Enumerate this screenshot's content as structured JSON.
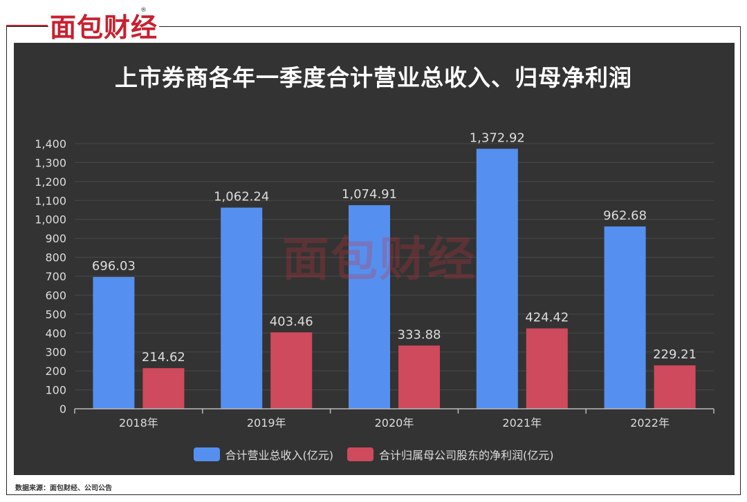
{
  "brand": {
    "logo_text": "面包财经",
    "reg_mark": "®",
    "watermark_text": "面包财经"
  },
  "source_note": "数据来源：面包财经、公司公告",
  "colors": {
    "revenue": "#5590f0",
    "profit": "#cf4a5c",
    "panel": "#333333",
    "accent": "#c8202f"
  },
  "chart_data": {
    "type": "bar",
    "title": "上市券商各年一季度合计营业总收入、归母净利润",
    "categories": [
      "2018年",
      "2019年",
      "2020年",
      "2021年",
      "2022年"
    ],
    "series": [
      {
        "name": "合计营业总收入(亿元)",
        "values": [
          696.03,
          1062.24,
          1074.91,
          1372.92,
          962.68
        ],
        "labels": [
          "696.03",
          "1,062.24",
          "1,074.91",
          "1,372.92",
          "962.68"
        ]
      },
      {
        "name": "合计归属母公司股东的净利润(亿元)",
        "values": [
          214.62,
          403.46,
          333.88,
          424.42,
          229.21
        ],
        "labels": [
          "214.62",
          "403.46",
          "333.88",
          "424.42",
          "229.21"
        ]
      }
    ],
    "ylim": [
      0,
      1400
    ],
    "yticks": [
      0,
      100,
      200,
      300,
      400,
      500,
      600,
      700,
      800,
      900,
      1000,
      1100,
      1200,
      1300,
      1400
    ],
    "ytick_labels": [
      "0",
      "100",
      "200",
      "300",
      "400",
      "500",
      "600",
      "700",
      "800",
      "900",
      "1,000",
      "1,100",
      "1,200",
      "1,300",
      "1,400"
    ],
    "grid": true,
    "legend": "bottom"
  }
}
